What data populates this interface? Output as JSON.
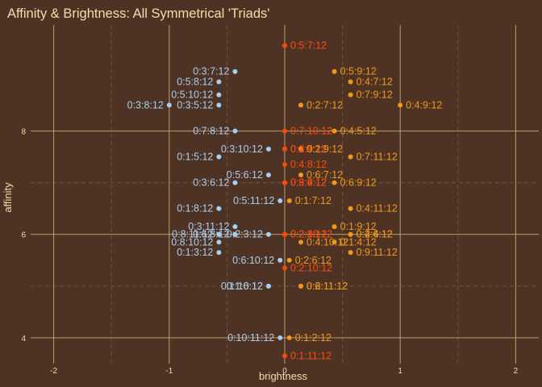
{
  "chart_data": {
    "type": "scatter",
    "title": "Affinity & Brightness: All Symmetrical 'Triads'",
    "xlabel": "brightness",
    "ylabel": "affinity",
    "xlim": [
      -2.2,
      2.2
    ],
    "ylim": [
      3.5,
      10.05
    ],
    "x_ticks": [
      -2,
      -1,
      0,
      1,
      2
    ],
    "y_ticks": [
      4,
      6,
      8
    ],
    "grid": true,
    "legend": "none",
    "colors": {
      "background": "#4e3324",
      "text": "#f1deab",
      "grid_major": "#c9a77a",
      "grid_minor": "#74533e",
      "negative": "#a8cff0",
      "zero": "#ff4a0f",
      "positive": "#f09a1c"
    },
    "points": [
      {
        "label": "0:5:7:12",
        "x": 0,
        "y": 9.65,
        "group": "zero"
      },
      {
        "label": "0:3:7:12",
        "x": -0.43,
        "y": 9.15,
        "group": "negative"
      },
      {
        "label": "0:5:9:12",
        "x": 0.43,
        "y": 9.15,
        "group": "positive"
      },
      {
        "label": "0:5:8:12",
        "x": -0.57,
        "y": 8.95,
        "group": "negative"
      },
      {
        "label": "0:4:7:12",
        "x": 0.57,
        "y": 8.95,
        "group": "positive"
      },
      {
        "label": "0:5:10:12",
        "x": -0.57,
        "y": 8.7,
        "group": "negative"
      },
      {
        "label": "0:2:7:12",
        "x": 0.14,
        "y": 8.5,
        "group": "positive"
      },
      {
        "label": "0:3:5:12",
        "x": -0.57,
        "y": 8.5,
        "group": "negative"
      },
      {
        "label": "0:7:9:12",
        "x": 0.57,
        "y": 8.7,
        "group": "positive"
      },
      {
        "label": "0:3:8:12",
        "x": -1.0,
        "y": 8.5,
        "group": "negative"
      },
      {
        "label": "0:4:9:12",
        "x": 1.0,
        "y": 8.5,
        "group": "positive"
      },
      {
        "label": "0:7:8:12",
        "x": -0.43,
        "y": 8.0,
        "group": "negative"
      },
      {
        "label": "0:7:10:12",
        "x": 0,
        "y": 8.0,
        "group": "zero"
      },
      {
        "label": "0:4:5:12",
        "x": 0.43,
        "y": 8.0,
        "group": "positive"
      },
      {
        "label": "0:3:10:12",
        "x": -0.14,
        "y": 7.65,
        "group": "negative"
      },
      {
        "label": "0:3:9:12",
        "x": 0,
        "y": 7.65,
        "group": "zero"
      },
      {
        "label": "0:2:5:12",
        "x": 0,
        "y": 7.65,
        "group": "zero"
      },
      {
        "label": "0:2:9:12",
        "x": 0.14,
        "y": 7.65,
        "group": "positive"
      },
      {
        "label": "0:1:5:12",
        "x": -0.57,
        "y": 7.5,
        "group": "negative"
      },
      {
        "label": "0:7:11:12",
        "x": 0.57,
        "y": 7.5,
        "group": "positive"
      },
      {
        "label": "0:4:8:12",
        "x": 0,
        "y": 7.35,
        "group": "zero"
      },
      {
        "label": "0:5:6:12",
        "x": -0.14,
        "y": 7.15,
        "group": "negative"
      },
      {
        "label": "0:6:7:12",
        "x": 0.14,
        "y": 7.15,
        "group": "positive"
      },
      {
        "label": "0:3:6:12",
        "x": -0.43,
        "y": 7.0,
        "group": "negative"
      },
      {
        "label": "0:3:4:12",
        "x": 0,
        "y": 7.0,
        "group": "zero"
      },
      {
        "label": "0:8:9:12",
        "x": 0,
        "y": 7.0,
        "group": "zero"
      },
      {
        "label": "0:6:9:12",
        "x": 0.43,
        "y": 7.0,
        "group": "positive"
      },
      {
        "label": "0:1:8:12",
        "x": -0.57,
        "y": 6.5,
        "group": "negative"
      },
      {
        "label": "0:5:11:12",
        "x": -0.04,
        "y": 6.65,
        "group": "negative"
      },
      {
        "label": "0:1:7:12",
        "x": 0.04,
        "y": 6.65,
        "group": "positive"
      },
      {
        "label": "0:4:11:12",
        "x": 0.57,
        "y": 6.5,
        "group": "positive"
      },
      {
        "label": "0:3:11:12",
        "x": -0.43,
        "y": 6.15,
        "group": "negative"
      },
      {
        "label": "0:1:9:12",
        "x": 0.43,
        "y": 6.15,
        "group": "positive"
      },
      {
        "label": "0:8:11:12",
        "x": -0.57,
        "y": 6.0,
        "group": "negative"
      },
      {
        "label": "0:2:8:12",
        "x": 0,
        "y": 6.0,
        "group": "zero"
      },
      {
        "label": "0:2:10:12",
        "x": 0,
        "y": 6.0,
        "group": "zero"
      },
      {
        "label": "0:4:6:12",
        "x": 0.57,
        "y": 6.0,
        "group": "positive"
      },
      {
        "label": "0:8:10:12",
        "x": -0.57,
        "y": 5.85,
        "group": "negative"
      },
      {
        "label": "0:6:8:12",
        "x": -0.43,
        "y": 6.0,
        "group": "negative"
      },
      {
        "label": "0:2:3:12",
        "x": -0.14,
        "y": 6.0,
        "group": "negative"
      },
      {
        "label": "0:4:10:12",
        "x": 0.14,
        "y": 5.85,
        "group": "positive"
      },
      {
        "label": "0:1:4:12",
        "x": 0.43,
        "y": 5.85,
        "group": "positive"
      },
      {
        "label": "0:2:4:12",
        "x": 0.57,
        "y": 6.0,
        "group": "positive"
      },
      {
        "label": "0:1:3:12",
        "x": -0.57,
        "y": 5.65,
        "group": "negative"
      },
      {
        "label": "0:6:10:12",
        "x": -0.04,
        "y": 5.5,
        "group": "negative"
      },
      {
        "label": "0:2:6:12",
        "x": 0.04,
        "y": 5.5,
        "group": "positive"
      },
      {
        "label": "0:9:11:12",
        "x": 0.57,
        "y": 5.65,
        "group": "positive"
      },
      {
        "label": "0:2:10:12",
        "x": 0,
        "y": 5.35,
        "group": "zero"
      },
      {
        "label": "0:6:11:12",
        "x": 0.14,
        "y": 5.0,
        "group": "positive"
      },
      {
        "label": "0:1:6:12",
        "x": -0.14,
        "y": 5.0,
        "group": "negative"
      },
      {
        "label": "0:1:10:12",
        "x": -0.14,
        "y": 5.0,
        "group": "negative"
      },
      {
        "label": "0:2:11:12",
        "x": 0.14,
        "y": 5.0,
        "group": "positive"
      },
      {
        "label": "0:10:11:12",
        "x": -0.04,
        "y": 4.0,
        "group": "negative"
      },
      {
        "label": "0:1:2:12",
        "x": 0.04,
        "y": 4.0,
        "group": "positive"
      },
      {
        "label": "0:1:11:12",
        "x": 0,
        "y": 3.65,
        "group": "zero"
      }
    ]
  }
}
